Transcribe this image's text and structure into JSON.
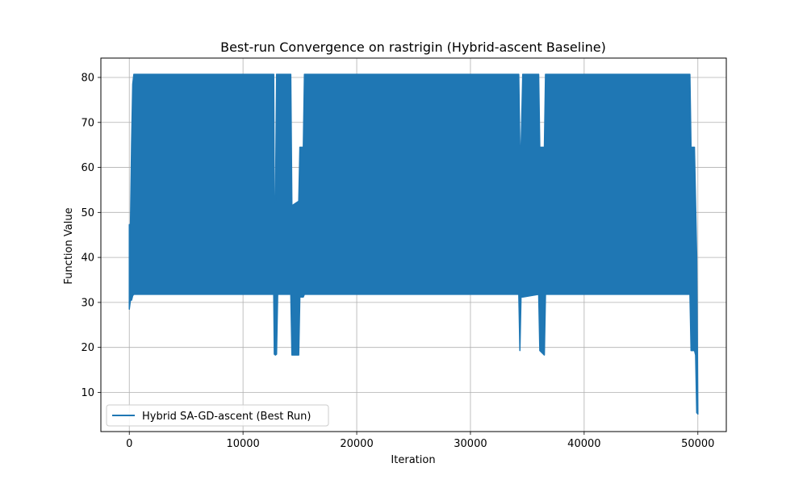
{
  "chart_data": {
    "type": "line",
    "title": "Best-run Convergence on rastrigin (Hybrid-ascent Baseline)",
    "xlabel": "Iteration",
    "ylabel": "Function Value",
    "xlim": [
      -2500,
      52500
    ],
    "ylim": [
      1.3,
      84.3
    ],
    "xticks": [
      0,
      10000,
      20000,
      30000,
      40000,
      50000
    ],
    "xtick_labels": [
      "0",
      "10000",
      "20000",
      "30000",
      "40000",
      "50000"
    ],
    "yticks": [
      10,
      20,
      30,
      40,
      50,
      60,
      70,
      80
    ],
    "ytick_labels": [
      "10",
      "20",
      "30",
      "40",
      "50",
      "60",
      "70",
      "80"
    ],
    "grid": true,
    "legend_position": "lower-left",
    "series": [
      {
        "name": "Hybrid SA-GD-ascent (Best Run)",
        "color": "#1f77b4",
        "envelope": [
          {
            "x": 0,
            "min": 28.5,
            "max": 47.3
          },
          {
            "x": 100,
            "min": 30.5,
            "max": 47.3
          },
          {
            "x": 200,
            "min": 30.5,
            "max": 65.3
          },
          {
            "x": 300,
            "min": 31.5,
            "max": 78.5
          },
          {
            "x": 400,
            "min": 31.8,
            "max": 80.7
          },
          {
            "x": 12700,
            "min": 31.8,
            "max": 80.7
          },
          {
            "x": 12750,
            "min": 18.5,
            "max": 52.5
          },
          {
            "x": 12850,
            "min": 18.3,
            "max": 52.5
          },
          {
            "x": 12950,
            "min": 18.5,
            "max": 80.7
          },
          {
            "x": 13050,
            "min": 31.8,
            "max": 80.7
          },
          {
            "x": 14200,
            "min": 31.8,
            "max": 80.7
          },
          {
            "x": 14300,
            "min": 18.3,
            "max": 51.5
          },
          {
            "x": 14900,
            "min": 18.3,
            "max": 52.5
          },
          {
            "x": 15000,
            "min": 31.2,
            "max": 64.5
          },
          {
            "x": 15300,
            "min": 31.2,
            "max": 64.5
          },
          {
            "x": 15400,
            "min": 31.8,
            "max": 80.7
          },
          {
            "x": 34250,
            "min": 31.8,
            "max": 80.7
          },
          {
            "x": 34350,
            "min": 19.3,
            "max": 64.5
          },
          {
            "x": 34450,
            "min": 31.2,
            "max": 64.5
          },
          {
            "x": 34600,
            "min": 31.2,
            "max": 80.7
          },
          {
            "x": 36000,
            "min": 31.8,
            "max": 80.7
          },
          {
            "x": 36100,
            "min": 19.3,
            "max": 64.5
          },
          {
            "x": 36500,
            "min": 18.3,
            "max": 64.5
          },
          {
            "x": 36600,
            "min": 31.8,
            "max": 80.7
          },
          {
            "x": 49300,
            "min": 31.8,
            "max": 80.7
          },
          {
            "x": 49400,
            "min": 19.3,
            "max": 64.5
          },
          {
            "x": 49700,
            "min": 19.3,
            "max": 64.5
          },
          {
            "x": 49800,
            "min": 18.3,
            "max": 52.5
          },
          {
            "x": 49900,
            "min": 5.5,
            "max": 40.2
          },
          {
            "x": 50000,
            "min": 5.2,
            "max": 5.5
          }
        ]
      }
    ]
  }
}
